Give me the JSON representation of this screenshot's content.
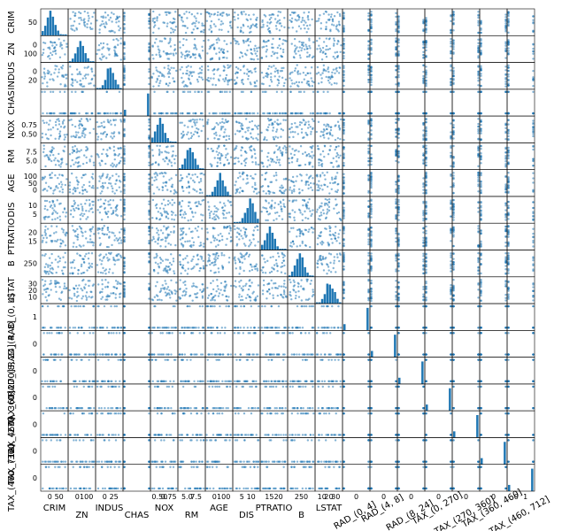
{
  "chart_data": {
    "type": "scatter",
    "variables": [
      "CRIM",
      "ZN",
      "INDUS",
      "CHAS",
      "NOX",
      "RM",
      "AGE",
      "DIS",
      "PTRATIO",
      "B",
      "LSTAT",
      "RAD_(0, 4]",
      "RAD_(4, 8]",
      "RAD_(8, 24]",
      "TAX_(0, 270]",
      "TAX_(270, 360]",
      "TAX_(360, 460]",
      "TAX_(460, 712]"
    ],
    "diagonal": "histogram",
    "row_labels": [
      "CRIM",
      "ZN",
      "INDUS",
      "CHAS",
      "NOX",
      "RM",
      "AGE",
      "DIS",
      "PTRATIO",
      "B",
      "LSTAT",
      "RAD_(0, 4]",
      "RAD_(4, 8]",
      "RAD_(8, 24]",
      "TAX_(0, 270]",
      "TAX_(270, 360]",
      "TAX_(360, 460]",
      "TAX_(460, 712]"
    ],
    "column_labels": [
      "CRIM",
      "ZN",
      "INDUS",
      "CHAS",
      "NOX",
      "RM",
      "AGE",
      "DIS",
      "PTRATIO",
      "B",
      "LSTAT",
      "RAD_(0, 4]",
      "RAD_(4, 8]",
      "RAD_(8, 24]",
      "TAX_(0, 270]",
      "TAX_(270, 360]",
      "TAX_(360, 460]",
      "TAX_(460, 712]"
    ],
    "row_ticks": [
      [
        "50"
      ],
      [
        "0",
        "100"
      ],
      [
        "0",
        "20"
      ],
      [],
      [
        "0.75",
        "0.50"
      ],
      [
        "7.5",
        "5.0"
      ],
      [
        "100",
        "50",
        "0"
      ],
      [
        "10",
        "5"
      ],
      [
        "20",
        "15"
      ],
      [
        "250"
      ],
      [
        "30",
        "20",
        "10"
      ],
      [
        "1"
      ],
      [
        "0"
      ],
      [
        "0"
      ],
      [
        "0"
      ],
      [
        "0"
      ],
      [
        "0"
      ],
      [
        "0"
      ]
    ],
    "col_ticks": [
      [
        "0",
        "50"
      ],
      [
        "0",
        "100"
      ],
      [
        "0",
        "25"
      ],
      [],
      [
        "0.50",
        "0.75"
      ],
      [
        "5.0",
        "7.5"
      ],
      [
        "0",
        "100"
      ],
      [
        "5",
        "10"
      ],
      [
        "15",
        "20"
      ],
      [
        "250"
      ],
      [
        "10",
        "20",
        "30"
      ],
      [
        "0"
      ],
      [
        "0"
      ],
      [
        "0"
      ],
      [
        "0"
      ],
      [
        "0"
      ],
      [
        "0"
      ],
      [
        "0",
        "1"
      ]
    ],
    "points_color": "#1f77b4"
  }
}
